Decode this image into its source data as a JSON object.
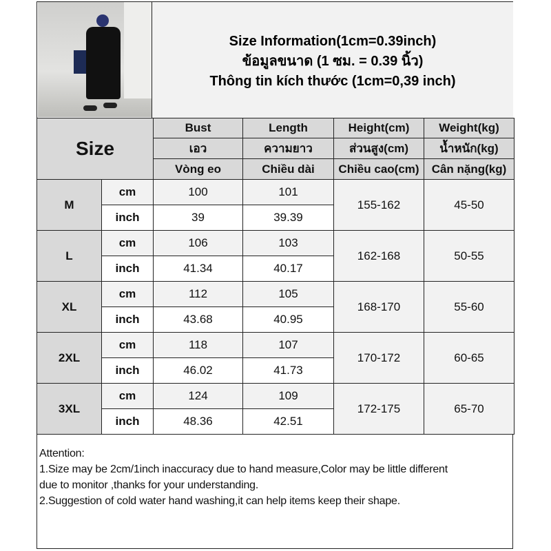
{
  "header": {
    "lines": [
      "Size Information(1cm=0.39inch)",
      "ข้อมูลขนาด (1 ซม. = 0.39 นิ้ว)",
      "Thông tin kích thước (1cm=0,39 inch)"
    ]
  },
  "photo": {
    "alt": "product photo: model wearing black t-shirt dress"
  },
  "table": {
    "size_label": "Size",
    "columns": [
      [
        "Bust",
        "เอว",
        "Vòng eo"
      ],
      [
        "Length",
        "ความยาว",
        "Chiều dài"
      ],
      [
        "Height(cm)",
        "ส่วนสูง(cm)",
        "Chiều cao(cm)"
      ],
      [
        "Weight(kg)",
        "น้ำหนัก(kg)",
        "Cân nặng(kg)"
      ]
    ],
    "units": [
      "cm",
      "inch"
    ],
    "rows": [
      {
        "size": "M",
        "cm": [
          "100",
          "101"
        ],
        "inch": [
          "39",
          "39.39"
        ],
        "height": "155-162",
        "weight": "45-50"
      },
      {
        "size": "L",
        "cm": [
          "106",
          "103"
        ],
        "inch": [
          "41.34",
          "40.17"
        ],
        "height": "162-168",
        "weight": "50-55"
      },
      {
        "size": "XL",
        "cm": [
          "112",
          "105"
        ],
        "inch": [
          "43.68",
          "40.95"
        ],
        "height": "168-170",
        "weight": "55-60"
      },
      {
        "size": "2XL",
        "cm": [
          "118",
          "107"
        ],
        "inch": [
          "46.02",
          "41.73"
        ],
        "height": "170-172",
        "weight": "60-65"
      },
      {
        "size": "3XL",
        "cm": [
          "124",
          "109"
        ],
        "inch": [
          "48.36",
          "42.51"
        ],
        "height": "172-175",
        "weight": "65-70"
      }
    ]
  },
  "notes": {
    "title": "Attention:",
    "lines": [
      "1.Size may be 2cm/1inch inaccuracy due to hand measure,Color may be little different",
      "due to monitor ,thanks for your understanding.",
      "2.Suggestion of cold water hand washing,it can help items keep their shape."
    ]
  }
}
